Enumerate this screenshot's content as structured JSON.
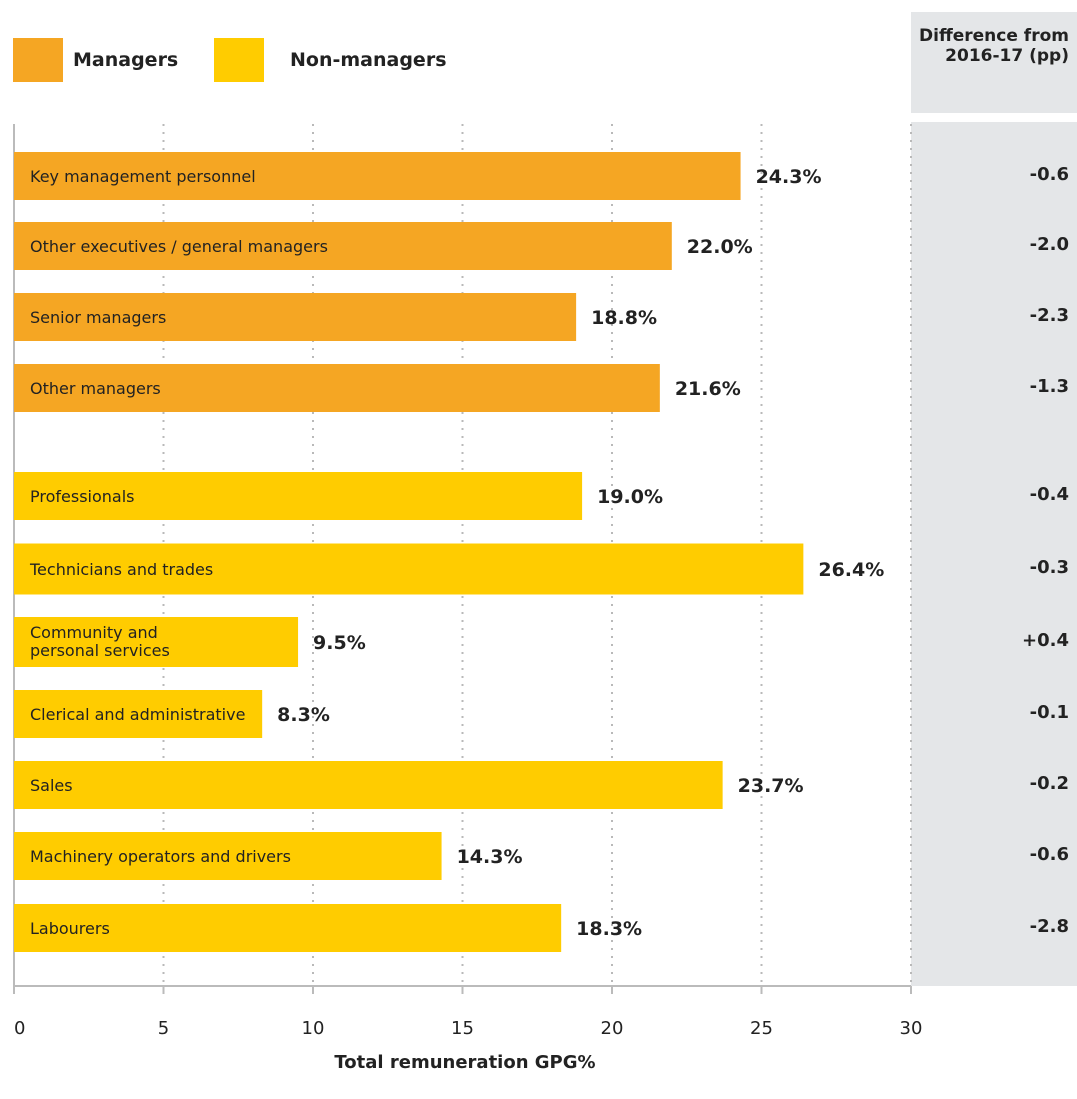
{
  "legend": [
    {
      "label": "Managers",
      "color": "#f5a623"
    },
    {
      "label": "Non-managers",
      "color": "#ffcc00"
    }
  ],
  "diff_header": "Difference from 2016-17 (pp)",
  "chart_data": {
    "type": "bar",
    "orientation": "horizontal",
    "xlabel": "Total remuneration GPG%",
    "xlim": [
      0,
      30
    ],
    "xticks": [
      0,
      5,
      10,
      15,
      20,
      25,
      30
    ],
    "grid": "vertical dotted",
    "legend_position": "top-left",
    "categories": [
      "Key management personnel",
      "Other executives / general managers",
      "Senior managers",
      "Other managers",
      "Professionals",
      "Technicians and trades",
      "Community and personal services",
      "Clerical and administrative",
      "Sales",
      "Machinery operators and drivers",
      "Labourers"
    ],
    "groups": [
      "Managers",
      "Managers",
      "Managers",
      "Managers",
      "Non-managers",
      "Non-managers",
      "Non-managers",
      "Non-managers",
      "Non-managers",
      "Non-managers",
      "Non-managers"
    ],
    "values": [
      24.3,
      22.0,
      18.8,
      21.6,
      19.0,
      26.4,
      9.5,
      8.3,
      23.7,
      14.3,
      18.3
    ],
    "value_labels": [
      "24.3%",
      "22.0%",
      "18.8%",
      "21.6%",
      "19.0%",
      "26.4%",
      "9.5%",
      "8.3%",
      "23.7%",
      "14.3%",
      "18.3%"
    ],
    "differences": [
      "-0.6",
      "-2.0",
      "-2.3",
      "-1.3",
      "-0.4",
      "-0.3",
      "+0.4",
      "-0.1",
      "-0.2",
      "-0.6",
      "-2.8"
    ]
  }
}
